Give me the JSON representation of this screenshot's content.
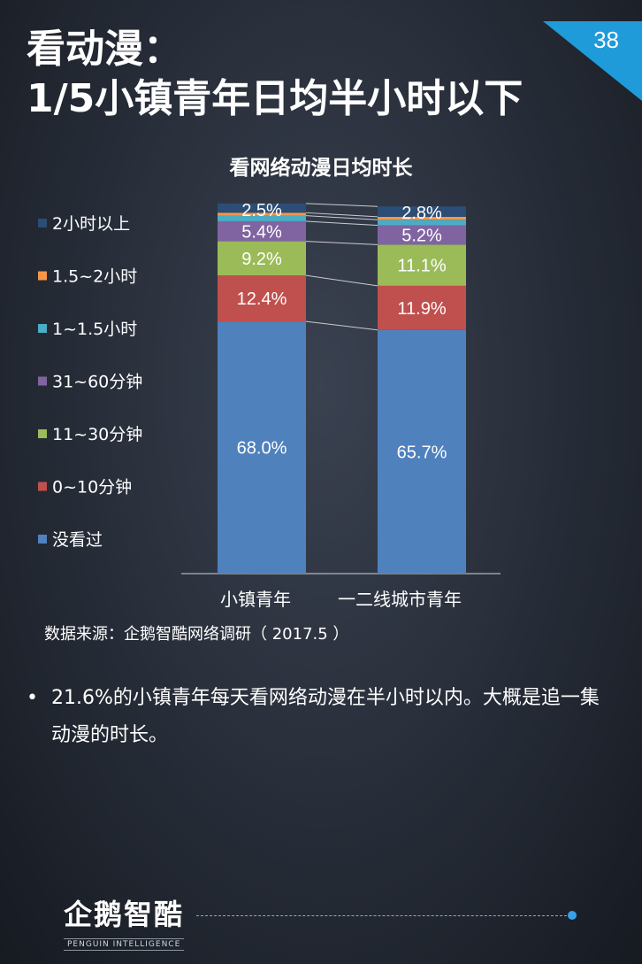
{
  "page": {
    "title_line1": "看动漫：",
    "title_line2": "1/5小镇青年日均半小时以下",
    "page_number": "38",
    "corner_color": "#1f9bd9",
    "source": "数据来源：企鹅智酷网络调研（  2017.5 ）",
    "bullet_mark": "•",
    "bullet_text": "21.6%的小镇青年每天看网络动漫在半小时以内。大概是追一集动漫的时长。",
    "logo_name": "企鹅智酷",
    "logo_sub": "PENGUIN INTELLIGENCE"
  },
  "chart_data": {
    "type": "bar",
    "stacked": true,
    "title": "看网络动漫日均时长",
    "categories": [
      "小镇青年",
      "一二线城市青年"
    ],
    "series": [
      {
        "name": "没看过",
        "color": "#4f81bd",
        "values": [
          68.0,
          65.7
        ],
        "labels": [
          "68.0%",
          "65.7%"
        ]
      },
      {
        "name": "0~10分钟",
        "color": "#c0504d",
        "values": [
          12.4,
          11.9
        ],
        "labels": [
          "12.4%",
          "11.9%"
        ]
      },
      {
        "name": "11~30分钟",
        "color": "#9bbb59",
        "values": [
          9.2,
          11.1
        ],
        "labels": [
          "9.2%",
          "11.1%"
        ]
      },
      {
        "name": "31~60分钟",
        "color": "#8064a2",
        "values": [
          5.4,
          5.2
        ],
        "labels": [
          "5.4%",
          "5.2%"
        ]
      },
      {
        "name": "1~1.5小时",
        "color": "#4bacc6",
        "values": [
          1.5,
          1.5
        ],
        "labels": [
          "",
          ""
        ]
      },
      {
        "name": "1.5~2小时",
        "color": "#f79646",
        "values": [
          0.8,
          0.8
        ],
        "labels": [
          "",
          ""
        ]
      },
      {
        "name": "2小时以上",
        "color": "#2c4d75",
        "values": [
          2.5,
          2.8
        ],
        "labels": [
          "2.5%",
          "2.8%"
        ]
      }
    ],
    "ylim": [
      0,
      100
    ],
    "legend_position": "left"
  }
}
